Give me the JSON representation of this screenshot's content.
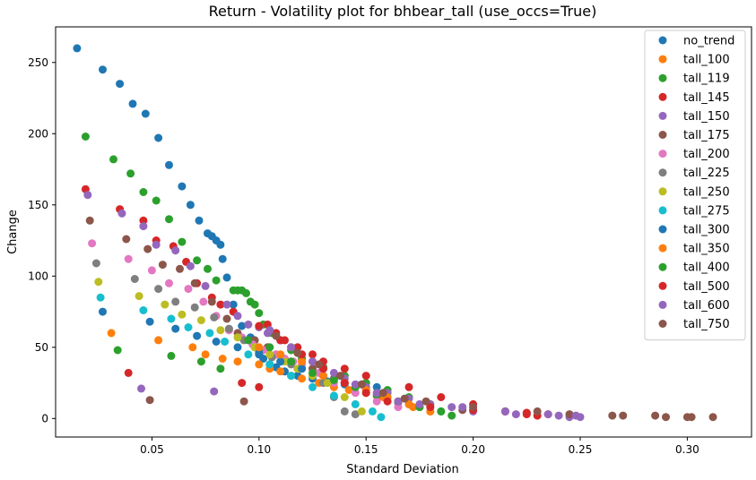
{
  "chart_data": {
    "type": "scatter",
    "title": "Return - Volatility plot for bhbear_tall (use_occs=True)",
    "xlabel": "Standard Deviation",
    "ylabel": "Change",
    "xlim": [
      0.005,
      0.33
    ],
    "ylim": [
      -13,
      275
    ],
    "xticks": [
      0.05,
      0.1,
      0.15,
      0.2,
      0.25,
      0.3
    ],
    "xtick_labels": [
      "0.05",
      "0.10",
      "0.15",
      "0.20",
      "0.25",
      "0.30"
    ],
    "yticks": [
      0,
      50,
      100,
      150,
      200,
      250
    ],
    "ytick_labels": [
      "0",
      "50",
      "100",
      "150",
      "200",
      "250"
    ],
    "grid": false,
    "legend_position": "top-right",
    "series": [
      {
        "name": "no_trend",
        "color": "#1f77b4",
        "x": [
          0.015,
          0.027,
          0.035,
          0.041,
          0.047,
          0.053,
          0.058,
          0.064,
          0.068,
          0.072,
          0.076,
          0.078,
          0.08,
          0.082,
          0.083,
          0.085,
          0.088,
          0.092,
          0.096,
          0.098,
          0.1,
          0.102,
          0.105,
          0.108,
          0.112,
          0.118,
          0.125,
          0.132,
          0.14,
          0.148,
          0.155
        ],
        "y": [
          260,
          245,
          235,
          221,
          214,
          197,
          178,
          163,
          150,
          139,
          130,
          128,
          125,
          122,
          112,
          99,
          80,
          65,
          57,
          50,
          45,
          42,
          38,
          36,
          33,
          30,
          28,
          26,
          24,
          24,
          22
        ]
      },
      {
        "name": "tall_100",
        "color": "#ff7f0e",
        "x": [
          0.031,
          0.053,
          0.069,
          0.075,
          0.083,
          0.09,
          0.1,
          0.105,
          0.11,
          0.115,
          0.12,
          0.128,
          0.135,
          0.142,
          0.15,
          0.158,
          0.165,
          0.172,
          0.18
        ],
        "y": [
          60,
          55,
          50,
          45,
          42,
          40,
          38,
          35,
          33,
          30,
          28,
          25,
          22,
          20,
          18,
          15,
          12,
          8,
          5
        ]
      },
      {
        "name": "tall_119",
        "color": "#2ca02c",
        "x": [
          0.019,
          0.032,
          0.034,
          0.04,
          0.046,
          0.052,
          0.058,
          0.059,
          0.064,
          0.071,
          0.073,
          0.076,
          0.08,
          0.082,
          0.088,
          0.09,
          0.092,
          0.094,
          0.096,
          0.098,
          0.1,
          0.102,
          0.106,
          0.11,
          0.115,
          0.12,
          0.13,
          0.14,
          0.15,
          0.16,
          0.17,
          0.18,
          0.185,
          0.19
        ],
        "y": [
          198,
          182,
          48,
          172,
          159,
          153,
          140,
          44,
          124,
          111,
          40,
          105,
          97,
          35,
          90,
          90,
          90,
          88,
          82,
          80,
          74,
          66,
          60,
          55,
          48,
          42,
          36,
          30,
          25,
          20,
          15,
          10,
          5,
          2
        ]
      },
      {
        "name": "tall_145",
        "color": "#d62728",
        "x": [
          0.019,
          0.035,
          0.039,
          0.046,
          0.052,
          0.06,
          0.066,
          0.071,
          0.078,
          0.082,
          0.088,
          0.092,
          0.1,
          0.104,
          0.108,
          0.112,
          0.118,
          0.125,
          0.13,
          0.14,
          0.15,
          0.17,
          0.185,
          0.2,
          0.215,
          0.225,
          0.23
        ],
        "y": [
          161,
          147,
          32,
          139,
          125,
          121,
          110,
          95,
          85,
          80,
          75,
          25,
          22,
          66,
          60,
          55,
          50,
          45,
          40,
          35,
          30,
          22,
          15,
          10,
          5,
          3,
          2
        ]
      },
      {
        "name": "tall_150",
        "color": "#9467bd",
        "x": [
          0.02,
          0.036,
          0.045,
          0.046,
          0.052,
          0.061,
          0.068,
          0.075,
          0.079,
          0.085,
          0.09,
          0.095,
          0.1,
          0.104,
          0.11,
          0.115,
          0.12,
          0.125,
          0.13,
          0.14,
          0.15,
          0.16,
          0.17,
          0.18,
          0.19,
          0.2,
          0.22,
          0.24,
          0.245,
          0.25
        ],
        "y": [
          157,
          144,
          21,
          135,
          122,
          118,
          107,
          93,
          19,
          80,
          72,
          66,
          64,
          60,
          55,
          50,
          45,
          40,
          35,
          28,
          22,
          18,
          14,
          10,
          8,
          5,
          3,
          2,
          1,
          1
        ]
      },
      {
        "name": "tall_175",
        "color": "#8c564b",
        "x": [
          0.021,
          0.038,
          0.048,
          0.049,
          0.055,
          0.063,
          0.07,
          0.078,
          0.085,
          0.09,
          0.093,
          0.098,
          0.104,
          0.108,
          0.115,
          0.125,
          0.135,
          0.145,
          0.155,
          0.165,
          0.175,
          0.195,
          0.225,
          0.245,
          0.265,
          0.285,
          0.3,
          0.312
        ],
        "y": [
          139,
          126,
          119,
          13,
          108,
          105,
          95,
          82,
          70,
          60,
          12,
          55,
          50,
          45,
          40,
          35,
          28,
          22,
          16,
          11,
          8,
          6,
          4,
          3,
          2,
          2,
          1,
          1
        ]
      },
      {
        "name": "tall_200",
        "color": "#e377c2",
        "x": [
          0.022,
          0.039,
          0.05,
          0.058,
          0.067,
          0.074,
          0.08,
          0.086,
          0.092,
          0.097,
          0.102,
          0.108,
          0.112,
          0.116,
          0.12,
          0.128,
          0.135,
          0.145,
          0.155,
          0.165
        ],
        "y": [
          123,
          112,
          104,
          95,
          91,
          82,
          72,
          62,
          57,
          52,
          48,
          45,
          42,
          40,
          38,
          32,
          25,
          18,
          12,
          8
        ]
      },
      {
        "name": "tall_225",
        "color": "#7f7f7f",
        "x": [
          0.024,
          0.042,
          0.053,
          0.061,
          0.07,
          0.079,
          0.086,
          0.093,
          0.1,
          0.106,
          0.11,
          0.115,
          0.12,
          0.125,
          0.13,
          0.135,
          0.14,
          0.145
        ],
        "y": [
          109,
          98,
          91,
          82,
          78,
          71,
          63,
          55,
          48,
          43,
          40,
          38,
          35,
          30,
          25,
          15,
          5,
          3
        ]
      },
      {
        "name": "tall_250",
        "color": "#bcbd22",
        "x": [
          0.025,
          0.044,
          0.056,
          0.064,
          0.073,
          0.082,
          0.09,
          0.098,
          0.105,
          0.112,
          0.118,
          0.125,
          0.132,
          0.14,
          0.148
        ],
        "y": [
          96,
          86,
          80,
          73,
          69,
          62,
          57,
          50,
          45,
          40,
          35,
          30,
          25,
          15,
          5
        ]
      },
      {
        "name": "tall_275",
        "color": "#17becf",
        "x": [
          0.026,
          0.046,
          0.059,
          0.067,
          0.077,
          0.084,
          0.095,
          0.105,
          0.115,
          0.125,
          0.135,
          0.145,
          0.153,
          0.157
        ],
        "y": [
          85,
          76,
          70,
          64,
          60,
          54,
          45,
          38,
          30,
          22,
          16,
          10,
          5,
          1
        ]
      },
      {
        "name": "tall_300",
        "color": "#1f77b4",
        "x": [
          0.027,
          0.049,
          0.061,
          0.071,
          0.08,
          0.09,
          0.1,
          0.11,
          0.12,
          0.13,
          0.14,
          0.15,
          0.16,
          0.17
        ],
        "y": [
          75,
          68,
          63,
          58,
          54,
          50,
          46,
          40,
          35,
          30,
          25,
          20,
          15,
          10
        ]
      },
      {
        "name": "tall_350",
        "color": "#ff7f0e",
        "x": [
          0.1,
          0.11,
          0.12,
          0.13,
          0.14,
          0.15,
          0.16,
          0.17,
          0.18
        ],
        "y": [
          50,
          45,
          40,
          30,
          25,
          20,
          15,
          10,
          5
        ]
      },
      {
        "name": "tall_400",
        "color": "#2ca02c",
        "x": [
          0.095,
          0.105,
          0.115,
          0.125,
          0.135,
          0.145,
          0.155,
          0.165,
          0.175,
          0.185
        ],
        "y": [
          55,
          50,
          40,
          32,
          27,
          22,
          17,
          12,
          8,
          5
        ]
      },
      {
        "name": "tall_500",
        "color": "#d62728",
        "x": [
          0.1,
          0.11,
          0.12,
          0.13,
          0.14,
          0.15,
          0.16,
          0.18,
          0.2,
          0.215,
          0.225,
          0.235
        ],
        "y": [
          65,
          55,
          45,
          35,
          25,
          18,
          12,
          8,
          6,
          5,
          4,
          3
        ]
      },
      {
        "name": "tall_600",
        "color": "#9467bd",
        "x": [
          0.105,
          0.115,
          0.125,
          0.135,
          0.145,
          0.155,
          0.165,
          0.175,
          0.195,
          0.215,
          0.235,
          0.248
        ],
        "y": [
          62,
          50,
          40,
          32,
          24,
          18,
          12,
          10,
          8,
          5,
          3,
          2
        ]
      },
      {
        "name": "tall_750",
        "color": "#8c564b",
        "x": [
          0.108,
          0.118,
          0.128,
          0.138,
          0.148,
          0.158,
          0.168,
          0.178,
          0.2,
          0.23,
          0.27,
          0.29,
          0.302
        ],
        "y": [
          58,
          46,
          38,
          30,
          24,
          18,
          14,
          12,
          8,
          5,
          2,
          1,
          1
        ]
      }
    ]
  }
}
